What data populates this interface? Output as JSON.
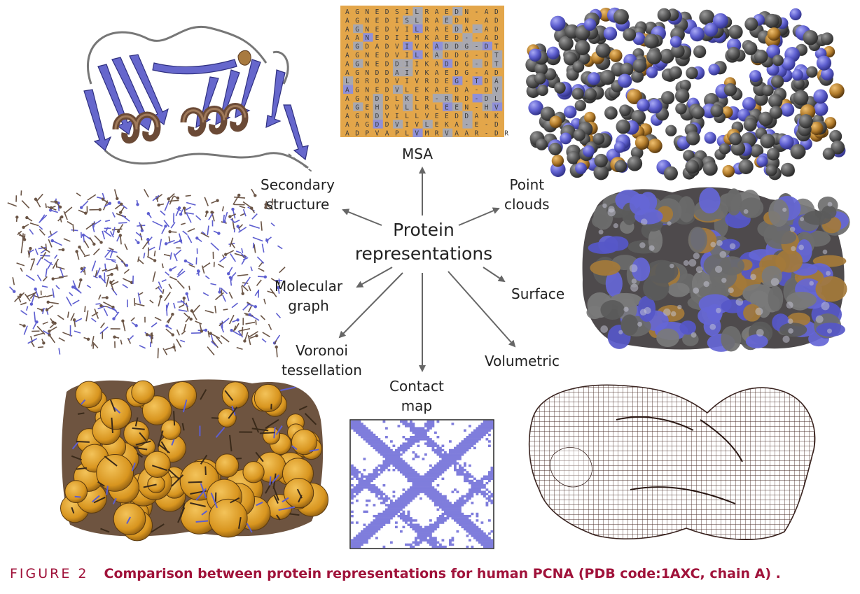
{
  "center": {
    "line1": "Protein",
    "line2": "representations"
  },
  "labels": {
    "msa": "MSA",
    "secondary_1": "Secondary",
    "secondary_2": "structure",
    "point_1": "Point",
    "point_2": "clouds",
    "molecular_1": "Molecular",
    "molecular_2": "graph",
    "surface": "Surface",
    "voronoi_1": "Voronoi",
    "voronoi_2": "tessellation",
    "contact_1": "Contact",
    "contact_2": "map",
    "volumetric": "Volumetric"
  },
  "caption": {
    "figure": "FIGURE 2",
    "text": "Comparison between protein representations for human PCNA (PDB code:1AXC, chain A) ."
  },
  "msa_rows": [
    "AGNEDSILRAEDN-AD",
    "AGNEDISLRAEDN-AD",
    "AGNEDVILRAEDA-AD",
    "AANEDIIMKAED--AD",
    "AGDADVIVKADDG-DT",
    "AGNEDVILKADDG-DT",
    "AGNEDDIIKADDG-DT",
    "AGNDDAIVKAEDG-AD",
    "LGRDDVIVRDEG-TDA",
    "AGNEDVLEKAEDA-DV",
    "AGNDDLKLR-RND-DL",
    "AGEHDVLLRLEEN-HV",
    "AGNDVILLVEEDDANK",
    "AAGDDVIVLEKA-E-D",
    "ADPVAPLVMRVAAR-DR"
  ],
  "colors": {
    "caption": "#a0123a",
    "beta_strand": "#6667cc",
    "helix": "#7a5a45",
    "gray_atom": "#585858",
    "msa_orange": "#e3a64a",
    "msa_gray": "#a8a8b0",
    "msa_blue": "#8f90d8",
    "contact": "#7f7ddc",
    "voronoi": "#e0a02c"
  }
}
